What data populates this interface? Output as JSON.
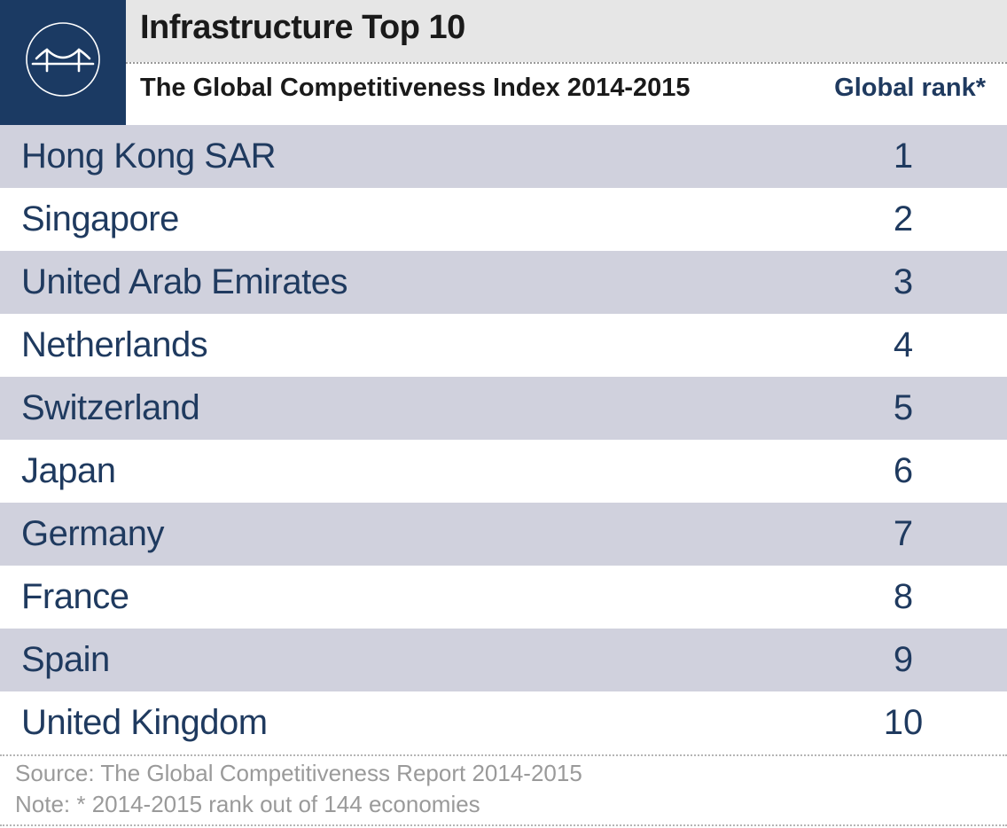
{
  "header": {
    "title": "Infrastructure Top 10",
    "subtitle": "The Global Competitiveness Index 2014-2015",
    "column_label": "Global rank*",
    "logo_icon": "bridge-icon"
  },
  "colors": {
    "logo_bg": "#1b3a63",
    "title_band": "#e6e6e6",
    "row_shade": "#d0d1dd",
    "text": "#1f3a5f",
    "footer_text": "#9a9a9a"
  },
  "chart_data": {
    "type": "table",
    "title": "Infrastructure Top 10",
    "subtitle": "The Global Competitiveness Index 2014-2015",
    "columns": [
      "",
      "Global rank*"
    ],
    "rows": [
      {
        "country": "Hong Kong SAR",
        "rank": 1
      },
      {
        "country": "Singapore",
        "rank": 2
      },
      {
        "country": "United Arab Emirates",
        "rank": 3
      },
      {
        "country": "Netherlands",
        "rank": 4
      },
      {
        "country": "Switzerland",
        "rank": 5
      },
      {
        "country": "Japan",
        "rank": 6
      },
      {
        "country": "Germany",
        "rank": 7
      },
      {
        "country": "France",
        "rank": 8
      },
      {
        "country": "Spain",
        "rank": 9
      },
      {
        "country": "United Kingdom",
        "rank": 10
      }
    ]
  },
  "footer": {
    "source": "Source: The Global Competitiveness Report 2014-2015",
    "note": "Note: * 2014-2015 rank out of 144 economies"
  }
}
